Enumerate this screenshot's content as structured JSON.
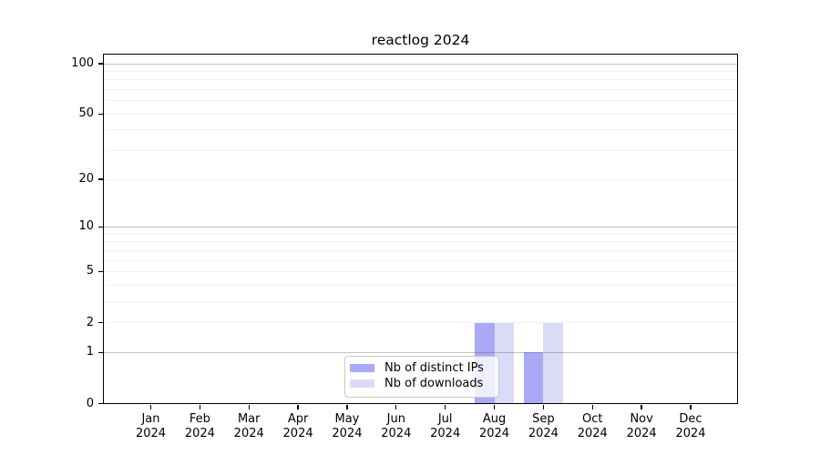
{
  "chart_data": {
    "type": "bar",
    "title": "reactlog 2024",
    "categories": [
      "Jan",
      "Feb",
      "Mar",
      "Apr",
      "May",
      "Jun",
      "Jul",
      "Aug",
      "Sep",
      "Oct",
      "Nov",
      "Dec"
    ],
    "x_axis": {
      "year_label": "2024"
    },
    "series": [
      {
        "name": "Nb of distinct IPs",
        "color": "#a9a9f6",
        "values": [
          0,
          0,
          0,
          0,
          0,
          0,
          0,
          2,
          1,
          0,
          0,
          0
        ]
      },
      {
        "name": "Nb of downloads",
        "color": "#dbdbf8",
        "values": [
          0,
          0,
          0,
          0,
          0,
          0,
          0,
          2,
          2,
          0,
          0,
          0
        ]
      }
    ],
    "y_axis": {
      "scale": "log10(value+1)",
      "ticks": [
        0,
        1,
        2,
        5,
        10,
        20,
        50,
        100
      ],
      "major_gridlines": [
        1,
        10,
        100
      ],
      "minor_gridlines": [
        2,
        3,
        4,
        5,
        6,
        7,
        8,
        9,
        20,
        30,
        40,
        50,
        60,
        70,
        80,
        90
      ],
      "range": [
        0,
        113
      ]
    },
    "grid": {
      "major_color": "rgba(80,80,80,0.35)",
      "minor_color": "rgba(120,120,120,0.10)"
    },
    "legend": {
      "position": "inside-bottom-center",
      "background": "rgba(255,255,255,0.8)",
      "border_color": "#c8c8c8"
    }
  }
}
